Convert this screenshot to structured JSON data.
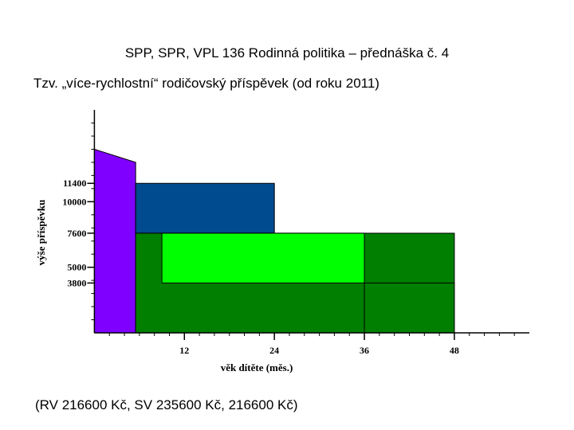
{
  "slide": {
    "title": "SPP, SPR, VPL 136 Rodinná politika – přednáška č. 4",
    "subtitle": "Tzv. „více-rychlostní“ rodičovský příspěvek (od roku 2011)",
    "footer": "(RV 216600 Kč, SV 235600 Kč, 216600 Kč)"
  },
  "chart_data": {
    "type": "area",
    "xlabel": "věk dítěte (měs.)",
    "ylabel": "výše příspěvku",
    "xlim": [
      -1,
      58
    ],
    "ylim": [
      0,
      17000
    ],
    "x_ticks": [
      12,
      24,
      36,
      48
    ],
    "y_ticks": [
      3800,
      5000,
      7600,
      10000,
      11400
    ],
    "grid": false,
    "series": [
      {
        "color": "#8000ff",
        "x": [
          0,
          5.5,
          5.5,
          0
        ],
        "y": [
          14000,
          13000,
          0,
          0
        ]
      },
      {
        "color": "#004a8f",
        "x": [
          5.5,
          24,
          24,
          5.5
        ],
        "y": [
          11400,
          11400,
          7600,
          7600
        ]
      },
      {
        "color": "#007f00",
        "x": [
          5.5,
          48,
          48,
          5.5
        ],
        "y": [
          7600,
          7600,
          0,
          0
        ]
      },
      {
        "color": "#00ff00",
        "x": [
          9,
          36,
          36,
          9
        ],
        "y": [
          7600,
          7600,
          3800,
          3800
        ]
      },
      {
        "color": "#007f00",
        "x": [
          36,
          48,
          48,
          36
        ],
        "y": [
          3800,
          3800,
          0,
          0
        ]
      }
    ]
  }
}
